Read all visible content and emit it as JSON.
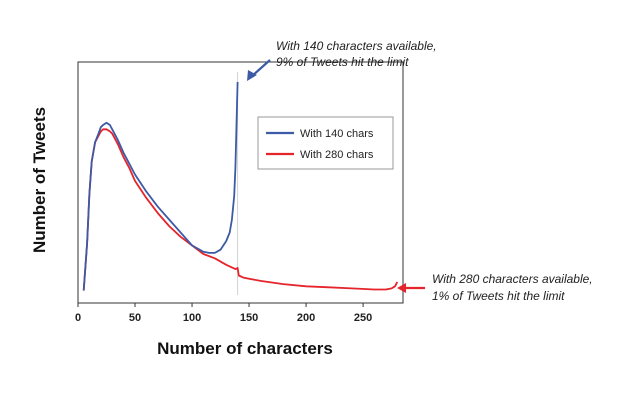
{
  "chart_data": {
    "type": "line",
    "xlabel": "Number of characters",
    "ylabel": "Number of Tweets",
    "xlim": [
      0,
      285
    ],
    "ylim": [
      0,
      1
    ],
    "x_ticks": [
      0,
      50,
      100,
      150,
      200,
      250
    ],
    "y_ticks_shown": false,
    "grid": false,
    "legend_position": "upper-right-center",
    "series": [
      {
        "name": "With 140 chars",
        "color": "#3c5aa6",
        "x": [
          5,
          8,
          10,
          12,
          15,
          18,
          20,
          22,
          25,
          28,
          30,
          35,
          40,
          45,
          50,
          60,
          70,
          80,
          90,
          100,
          110,
          115,
          120,
          125,
          130,
          133,
          135,
          137,
          138,
          139,
          140
        ],
        "y": [
          0.03,
          0.25,
          0.48,
          0.63,
          0.72,
          0.76,
          0.79,
          0.8,
          0.81,
          0.8,
          0.78,
          0.73,
          0.67,
          0.62,
          0.57,
          0.49,
          0.42,
          0.36,
          0.3,
          0.24,
          0.21,
          0.205,
          0.205,
          0.22,
          0.26,
          0.3,
          0.36,
          0.47,
          0.6,
          0.8,
          1.0
        ]
      },
      {
        "name": "With 280 chars",
        "color": "#e5242b",
        "x": [
          5,
          8,
          10,
          12,
          15,
          18,
          20,
          22,
          25,
          28,
          30,
          35,
          40,
          45,
          50,
          60,
          70,
          80,
          90,
          100,
          110,
          120,
          130,
          138,
          140,
          141,
          145,
          150,
          160,
          180,
          200,
          220,
          240,
          260,
          270,
          275,
          278,
          280
        ],
        "y": [
          0.03,
          0.25,
          0.48,
          0.63,
          0.72,
          0.75,
          0.77,
          0.78,
          0.78,
          0.77,
          0.76,
          0.71,
          0.65,
          0.6,
          0.54,
          0.46,
          0.39,
          0.33,
          0.28,
          0.24,
          0.2,
          0.18,
          0.15,
          0.13,
          0.135,
          0.1,
          0.09,
          0.085,
          0.075,
          0.06,
          0.05,
          0.045,
          0.04,
          0.035,
          0.035,
          0.04,
          0.05,
          0.07
        ]
      }
    ],
    "annotations": [
      {
        "line1": "With 140 characters available,",
        "line2": "9% of Tweets hit the limit",
        "color": "#3c5aa6"
      },
      {
        "line1": "With 280 characters available,",
        "line2": "1% of Tweets hit the limit",
        "color": "#e5242b"
      }
    ]
  }
}
